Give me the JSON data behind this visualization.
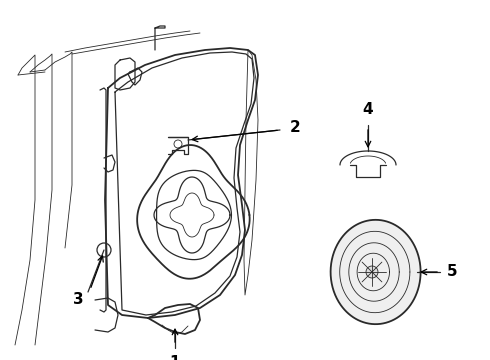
{
  "background_color": "#ffffff",
  "line_color": "#2a2a2a",
  "label_color": "#000000",
  "figsize": [
    4.9,
    3.6
  ],
  "dpi": 100,
  "label_fontsize": 11,
  "label_fontweight": "bold",
  "lw_main": 1.3,
  "lw_med": 0.9,
  "lw_thin": 0.6
}
